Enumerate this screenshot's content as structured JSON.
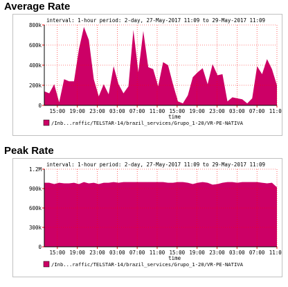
{
  "sections": {
    "average": {
      "title": "Average Rate"
    },
    "peak": {
      "title": "Peak Rate"
    }
  },
  "colors": {
    "fill": "#cc0066",
    "grid": "#ff0000",
    "axis": "#000000",
    "border": "#c0c0c0"
  },
  "chart_data": [
    {
      "type": "area",
      "title": "interval: 1-hour  period: 2-day, 27-May-2017 11:09 to 29-May-2017 11:09",
      "xlabel": "time",
      "ylabel": "",
      "ylim": [
        0,
        800000
      ],
      "y_ticks": [
        0,
        200000,
        400000,
        600000,
        800000
      ],
      "y_tick_labels": [
        "0",
        "200k",
        "400k",
        "600k",
        "800k"
      ],
      "x_tick_labels": [
        "15:00",
        "19:00",
        "23:00",
        "03:00",
        "07:00",
        "11:00",
        "15:00",
        "19:00",
        "23:00",
        "03:00",
        "07:00",
        "11:00"
      ],
      "grid": true,
      "legend_position": "bottom-left",
      "series": [
        {
          "name": "/Inb...raffic/TELSTAR-14/brazil_services/Grupo_1-20/VR-PE-NATIVA",
          "values": [
            140000,
            120000,
            210000,
            30000,
            260000,
            240000,
            240000,
            560000,
            780000,
            650000,
            260000,
            90000,
            210000,
            110000,
            390000,
            210000,
            120000,
            190000,
            750000,
            330000,
            740000,
            380000,
            360000,
            190000,
            430000,
            400000,
            210000,
            40000,
            20000,
            100000,
            280000,
            330000,
            370000,
            210000,
            410000,
            300000,
            310000,
            40000,
            80000,
            70000,
            60000,
            20000,
            70000,
            390000,
            310000,
            460000,
            360000,
            200000
          ]
        }
      ]
    },
    {
      "type": "area",
      "title": "interval: 1-hour  period: 2-day, 27-May-2017 11:09 to 29-May-2017 11:09",
      "xlabel": "time",
      "ylabel": "",
      "ylim": [
        0,
        1200000
      ],
      "y_ticks": [
        0,
        300000,
        600000,
        900000,
        1200000
      ],
      "y_tick_labels": [
        "0",
        "300k",
        "600k",
        "900k",
        "1.2M"
      ],
      "x_tick_labels": [
        "15:00",
        "19:00",
        "23:00",
        "03:00",
        "07:00",
        "11:00",
        "15:00",
        "19:00",
        "23:00",
        "03:00",
        "07:00",
        "11:00"
      ],
      "grid": true,
      "legend_position": "bottom-left",
      "series": [
        {
          "name": "/Inb...raffic/TELSTAR-14/brazil_services/Grupo_1-20/VR-PE-NATIVA",
          "values": [
            990000,
            990000,
            970000,
            990000,
            980000,
            980000,
            990000,
            970000,
            1000000,
            980000,
            990000,
            970000,
            990000,
            990000,
            1000000,
            990000,
            1000000,
            1000000,
            1000000,
            1000000,
            1000000,
            1000000,
            1000000,
            1000000,
            1000000,
            990000,
            990000,
            1000000,
            1000000,
            990000,
            970000,
            990000,
            1000000,
            990000,
            960000,
            970000,
            990000,
            1000000,
            1000000,
            990000,
            1000000,
            1000000,
            1000000,
            1000000,
            990000,
            980000,
            990000,
            920000
          ]
        }
      ]
    }
  ]
}
